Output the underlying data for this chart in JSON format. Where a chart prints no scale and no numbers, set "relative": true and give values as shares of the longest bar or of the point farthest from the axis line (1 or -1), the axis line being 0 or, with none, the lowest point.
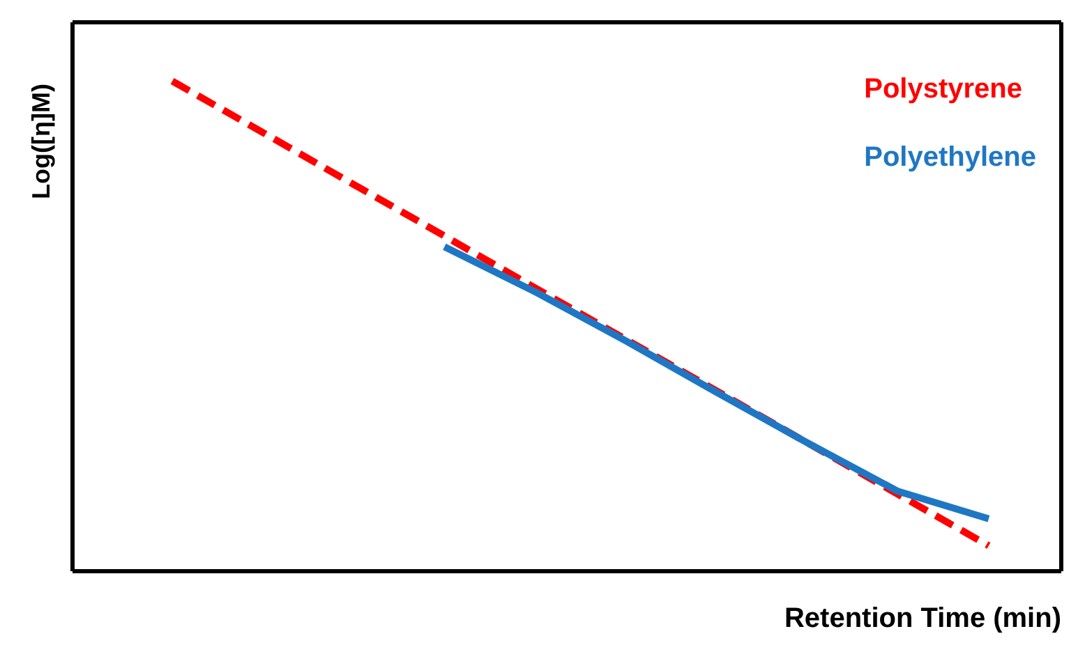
{
  "chart_data": {
    "type": "line",
    "relative": true,
    "xlabel": "Retention Time (min)",
    "ylabel": "Log([η]M)",
    "categories": [
      null,
      null,
      null,
      null,
      null,
      null,
      null,
      null,
      null,
      null
    ],
    "legend": "top right",
    "series": [
      {
        "name": "Polystyrene",
        "color": "#ff0000",
        "line_style": "dashed",
        "values": [
          1,
          0.895,
          0.789,
          0.684,
          0.578,
          0.473,
          0.368,
          0.262,
          0.157,
          0.052
        ]
      },
      {
        "name": "Polyethylene",
        "color": "#1f77c4",
        "line_style": "solid",
        "values": [
          null,
          null,
          null,
          0.662,
          0.57,
          0.47,
          0.365,
          0.262,
          0.163,
          0.107
        ]
      }
    ]
  }
}
